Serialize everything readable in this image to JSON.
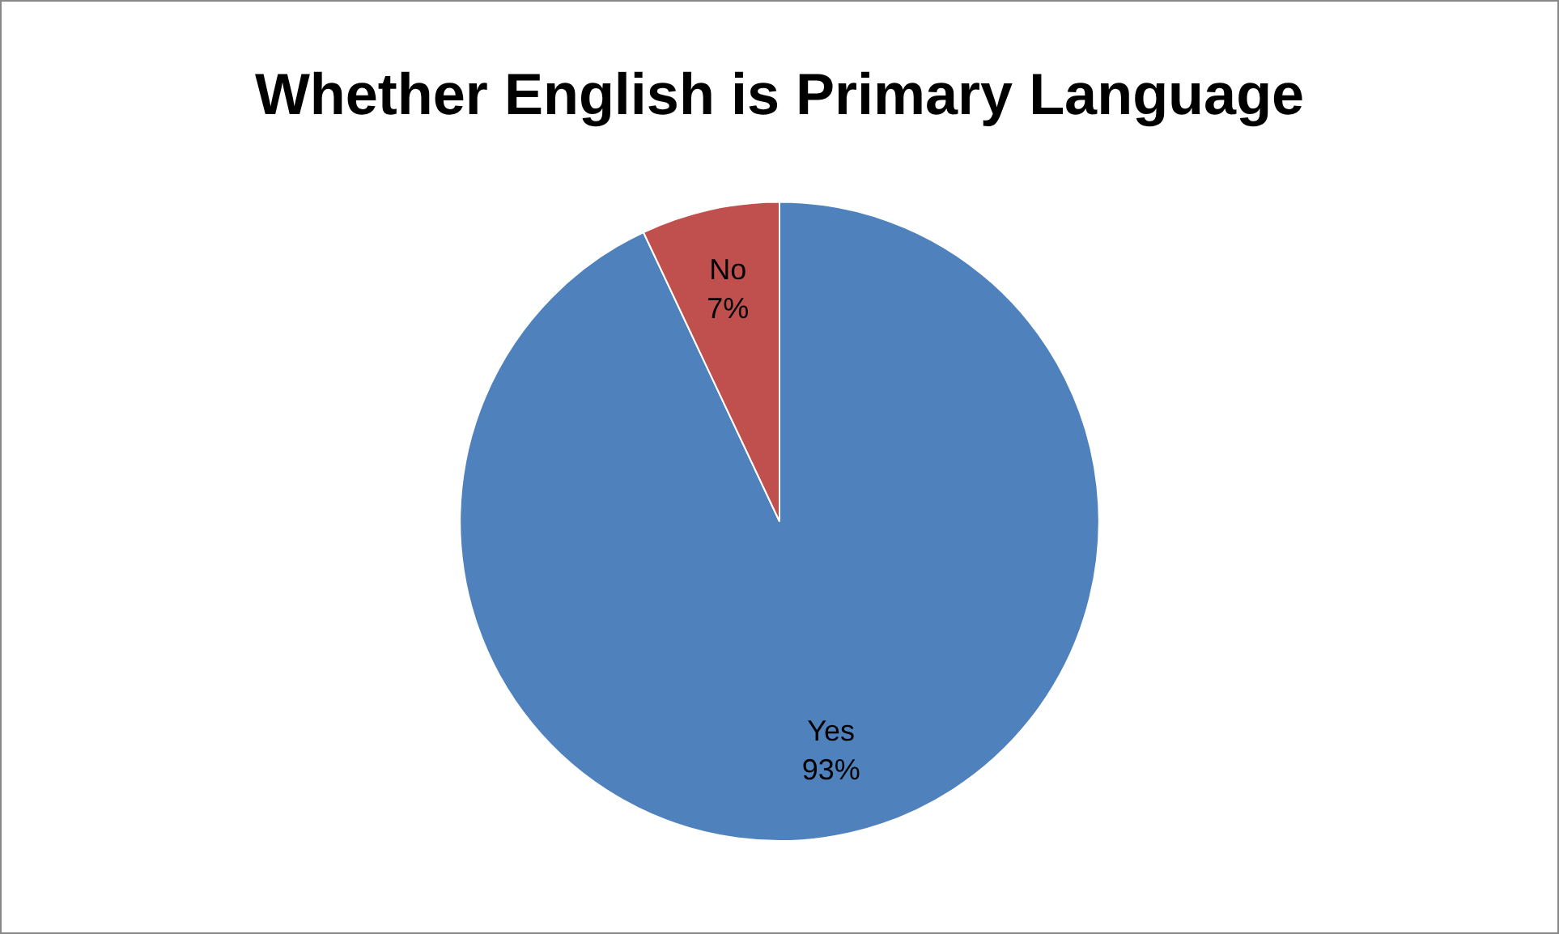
{
  "chart_data": {
    "type": "pie",
    "title": "Whether English is Primary Language",
    "categories": [
      "Yes",
      "No"
    ],
    "values": [
      93,
      7
    ],
    "colors": [
      "#4f81bd",
      "#c0504d"
    ],
    "value_labels": [
      "93%",
      "7%"
    ],
    "legend": false
  }
}
